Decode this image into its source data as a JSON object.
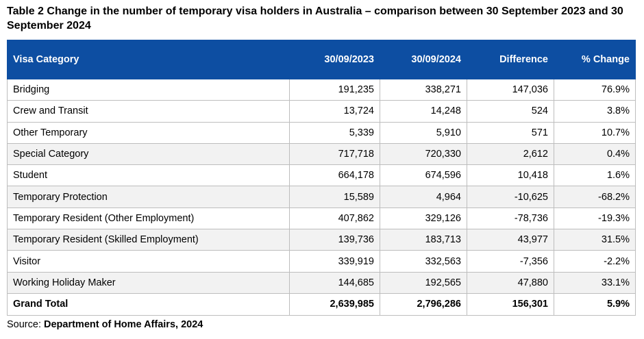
{
  "title": "Table 2 Change in the number of temporary visa holders in Australia – comparison between 30 September 2023 and 30 September 2024",
  "table": {
    "headers": [
      "Visa Category",
      "30/09/2023",
      "30/09/2024",
      "Difference",
      "% Change"
    ],
    "header_color": "#0d4ea2",
    "rows": [
      [
        "Bridging",
        "191,235",
        "338,271",
        "147,036",
        "76.9%"
      ],
      [
        "Crew and Transit",
        "13,724",
        "14,248",
        "524",
        "3.8%"
      ],
      [
        "Other Temporary",
        "5,339",
        "5,910",
        "571",
        "10.7%"
      ],
      [
        "Special Category",
        "717,718",
        "720,330",
        "2,612",
        "0.4%"
      ],
      [
        "Student",
        "664,178",
        "674,596",
        "10,418",
        "1.6%"
      ],
      [
        "Temporary Protection",
        "15,589",
        "4,964",
        "-10,625",
        "-68.2%"
      ],
      [
        "Temporary Resident (Other Employment)",
        "407,862",
        "329,126",
        "-78,736",
        "-19.3%"
      ],
      [
        "Temporary Resident (Skilled Employment)",
        "139,736",
        "183,713",
        "43,977",
        "31.5%"
      ],
      [
        "Visitor",
        "339,919",
        "332,563",
        "-7,356",
        "-2.2%"
      ],
      [
        "Working Holiday Maker",
        "144,685",
        "192,565",
        "47,880",
        "33.1%"
      ]
    ],
    "total": [
      "Grand Total",
      "2,639,985",
      "2,796,286",
      "156,301",
      "5.9%"
    ]
  },
  "source": {
    "prefix": "Source: ",
    "text": "Department of Home Affairs, 2024"
  }
}
